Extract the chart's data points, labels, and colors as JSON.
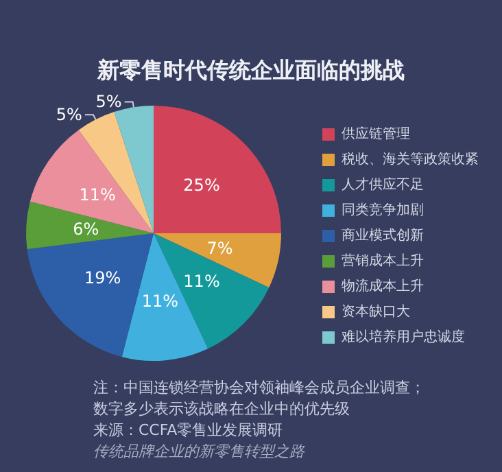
{
  "chart_data": {
    "type": "pie",
    "title": "新零售时代传统企业面临的挑战",
    "categories": [
      "供应链管理",
      "税收、海关等政策收紧",
      "人才供应不足",
      "同类竞争加剧",
      "商业模式创新",
      "营销成本上升",
      "物流成本上升",
      "资本缺口大",
      "难以培养用户忠诚度"
    ],
    "values": [
      25,
      7,
      11,
      11,
      19,
      6,
      11,
      5,
      5
    ],
    "value_labels": [
      "25%",
      "7%",
      "11%",
      "11%",
      "19%",
      "6%",
      "11%",
      "5%",
      "5%"
    ],
    "colors": [
      "#d2435a",
      "#e0a03e",
      "#14999a",
      "#40b1df",
      "#2d5ea8",
      "#5a9e3a",
      "#ea8f9b",
      "#f8c886",
      "#7ec8d0"
    ],
    "legend": "right",
    "annotations": [
      "注：中国连锁经营协会对领袖峰会成员企业调查；",
      "数字多少表示该战略在企业中的优先级",
      "来源：CCFA零售业发展调研",
      "传统品牌企业的新零售转型之路"
    ]
  }
}
